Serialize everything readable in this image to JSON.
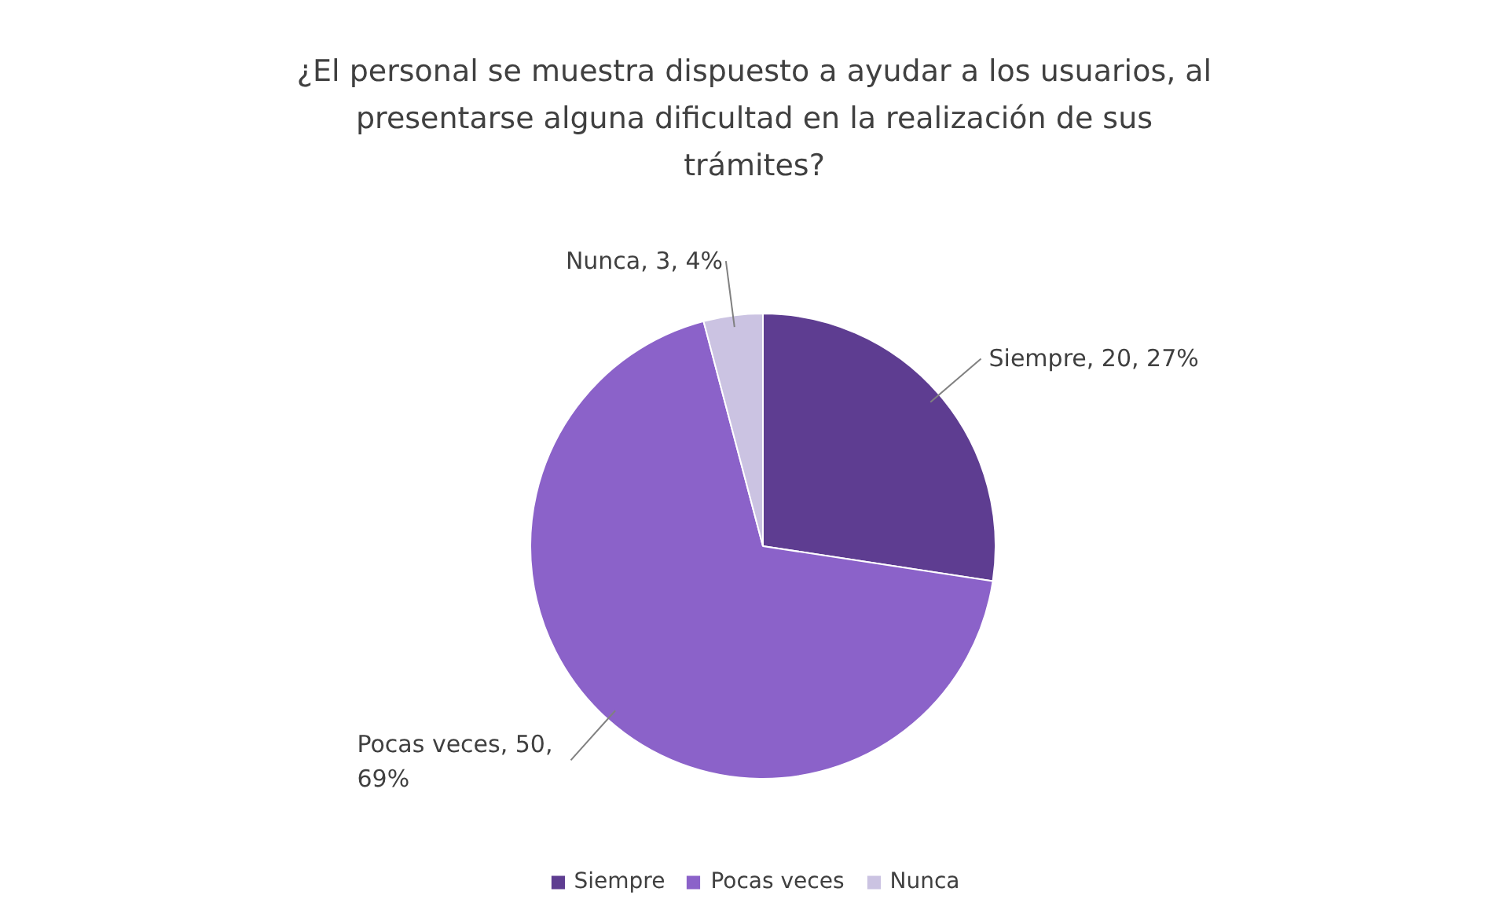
{
  "chart_data": {
    "type": "pie",
    "title": "¿El personal se muestra dispuesto a ayudar a los usuarios, al presentarse alguna dificultad en la realización de sus trámites?",
    "categories": [
      "Siempre",
      "Pocas veces",
      "Nunca"
    ],
    "values": [
      20,
      50,
      3
    ],
    "colors": [
      "#5e3d91",
      "#8b62c9",
      "#cbc3e2"
    ],
    "value_labels": [
      "Siempre, 20, 27%",
      "Pocas veces, 50, 69%",
      "Nunca, 3, 4%"
    ],
    "legend": "bottom"
  }
}
